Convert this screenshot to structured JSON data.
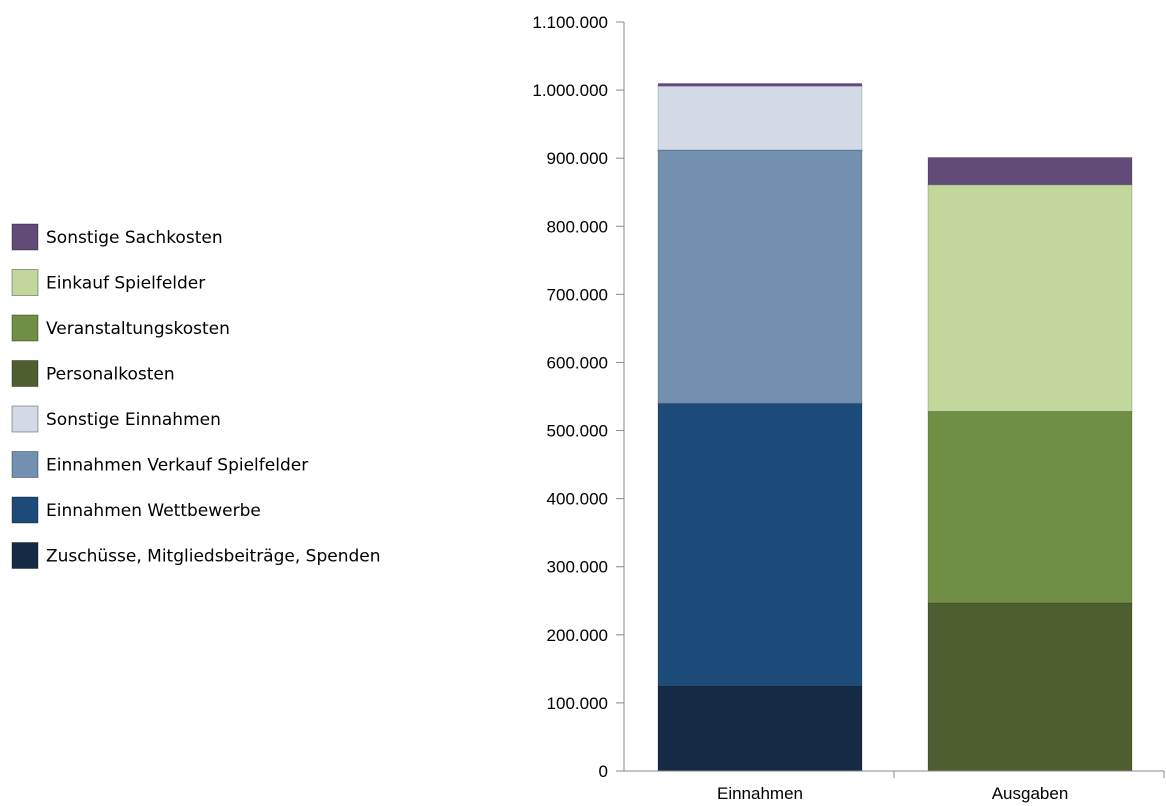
{
  "chart_data": {
    "type": "bar",
    "stacked": true,
    "categories": [
      "Einnahmen",
      "Ausgaben"
    ],
    "ylim": [
      0,
      1100000
    ],
    "yticks": [
      0,
      100000,
      200000,
      300000,
      400000,
      500000,
      600000,
      700000,
      800000,
      900000,
      1000000,
      1100000
    ],
    "ytick_labels": [
      "0",
      "100.000",
      "200.000",
      "300.000",
      "400.000",
      "500.000",
      "600.000",
      "700.000",
      "800.000",
      "900.000",
      "1.000.000",
      "1.100.000"
    ],
    "grid": false,
    "legend_position": "left",
    "series": [
      {
        "name": "Zuschüsse, Mitgliedsbeiträge, Spenden",
        "color": "#152a45",
        "values": [
          125000,
          0
        ]
      },
      {
        "name": "Einnahmen Wettbewerbe",
        "color": "#1c4b7a",
        "values": [
          415000,
          0
        ]
      },
      {
        "name": "Einnahmen Verkauf Spielfelder",
        "color": "#7390b0",
        "values": [
          372000,
          0
        ]
      },
      {
        "name": "Sonstige Einnahmen",
        "color": "#d3dae5",
        "values": [
          95000,
          0
        ]
      },
      {
        "name": "Personalkosten",
        "color": "#4e5e31",
        "values": [
          0,
          247000
        ]
      },
      {
        "name": "Veranstaltungskosten",
        "color": "#718e45",
        "values": [
          0,
          281000
        ]
      },
      {
        "name": "Einkauf Spielfelder",
        "color": "#c2d79c",
        "values": [
          0,
          333000
        ]
      },
      {
        "name": "Sonstige Sachkosten",
        "color": "#614c77",
        "values": [
          0,
          40000
        ]
      }
    ],
    "top_edge_color": "#614c77",
    "legend_order": [
      7,
      6,
      5,
      4,
      3,
      2,
      1,
      0
    ]
  }
}
